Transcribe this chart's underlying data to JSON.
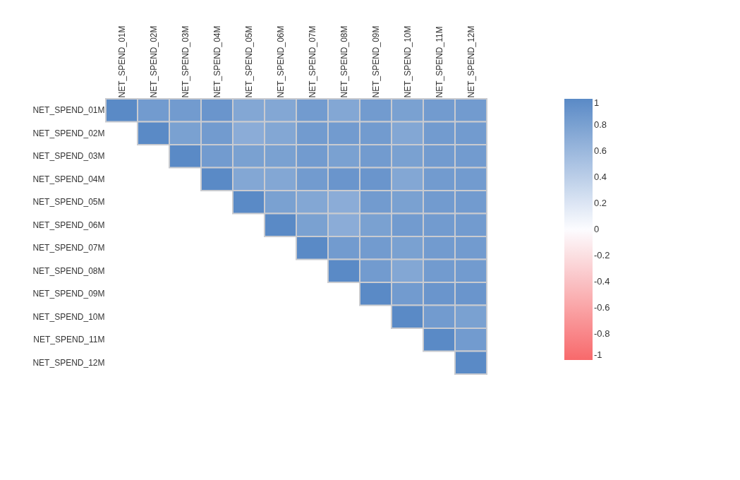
{
  "chart_data": {
    "type": "heatmap",
    "categories": [
      "NET_SPEND_01M",
      "NET_SPEND_02M",
      "NET_SPEND_03M",
      "NET_SPEND_04M",
      "NET_SPEND_05M",
      "NET_SPEND_06M",
      "NET_SPEND_07M",
      "NET_SPEND_08M",
      "NET_SPEND_09M",
      "NET_SPEND_10M",
      "NET_SPEND_11M",
      "NET_SPEND_12M"
    ],
    "y_categories": [
      "NET_SPEND_01M",
      "NET_SPEND_02M",
      "NET_SPEND_03M",
      "NET_SPEND_04M",
      "NET_SPEND_05M",
      "NET_SPEND_06M",
      "NET_SPEND_07M",
      "NET_SPEND_08M",
      "NET_SPEND_09M",
      "NET_SPEND_10M",
      "NET_SPEND_11M",
      "NET_SPEND_12M"
    ],
    "cells": [
      [
        1,
        0.85,
        0.85,
        0.9,
        0.75,
        0.75,
        0.85,
        0.75,
        0.85,
        0.8,
        0.85,
        0.85
      ],
      [
        null,
        1,
        0.8,
        0.85,
        0.7,
        0.75,
        0.85,
        0.85,
        0.85,
        0.75,
        0.85,
        0.85
      ],
      [
        null,
        null,
        1,
        0.85,
        0.8,
        0.8,
        0.85,
        0.8,
        0.85,
        0.8,
        0.85,
        0.85
      ],
      [
        null,
        null,
        null,
        1,
        0.75,
        0.75,
        0.85,
        0.9,
        0.9,
        0.75,
        0.85,
        0.85
      ],
      [
        null,
        null,
        null,
        null,
        1,
        0.8,
        0.75,
        0.7,
        0.85,
        0.8,
        0.85,
        0.85
      ],
      [
        null,
        null,
        null,
        null,
        null,
        1,
        0.8,
        0.7,
        0.8,
        0.85,
        0.85,
        0.85
      ],
      [
        null,
        null,
        null,
        null,
        null,
        null,
        1,
        0.85,
        0.85,
        0.8,
        0.85,
        0.85
      ],
      [
        null,
        null,
        null,
        null,
        null,
        null,
        null,
        1,
        0.85,
        0.75,
        0.85,
        0.85
      ],
      [
        null,
        null,
        null,
        null,
        null,
        null,
        null,
        null,
        1,
        0.85,
        0.9,
        0.9
      ],
      [
        null,
        null,
        null,
        null,
        null,
        null,
        null,
        null,
        null,
        1,
        0.85,
        0.8
      ],
      [
        null,
        null,
        null,
        null,
        null,
        null,
        null,
        null,
        null,
        null,
        1,
        0.85
      ],
      [
        null,
        null,
        null,
        null,
        null,
        null,
        null,
        null,
        null,
        null,
        null,
        1
      ]
    ],
    "clim": [
      -1,
      1
    ],
    "cticks": [
      1,
      0.8,
      0.6,
      0.4,
      0.2,
      0,
      -0.2,
      -0.4,
      -0.6,
      -0.8,
      -1
    ]
  }
}
